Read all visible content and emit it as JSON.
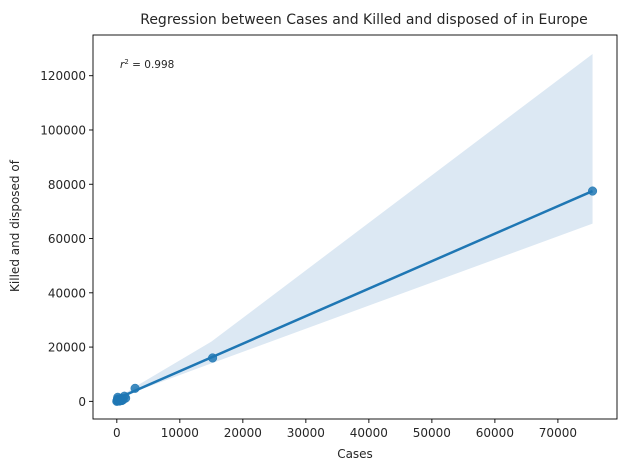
{
  "chart_data": {
    "type": "scatter",
    "title": "Regression between Cases and Killed and disposed of in Europe",
    "xlabel": "Cases",
    "ylabel": "Killed and disposed of",
    "xlim": [
      -3780,
      79380
    ],
    "ylim": [
      -6500,
      135000
    ],
    "xticks": [
      0,
      10000,
      20000,
      30000,
      40000,
      50000,
      60000,
      70000
    ],
    "yticks": [
      0,
      20000,
      40000,
      60000,
      80000,
      100000,
      120000
    ],
    "annotation": {
      "prefix": "r",
      "superscript": "2",
      "text": " = 0.998"
    },
    "points_color": "#1f77b4",
    "band_color": "#dce8f3",
    "points": [
      {
        "x": 0,
        "y": 0
      },
      {
        "x": 50,
        "y": 300
      },
      {
        "x": 100,
        "y": 800
      },
      {
        "x": 150,
        "y": 1500
      },
      {
        "x": 200,
        "y": 200
      },
      {
        "x": 300,
        "y": 600
      },
      {
        "x": 400,
        "y": 100
      },
      {
        "x": 500,
        "y": 900
      },
      {
        "x": 600,
        "y": 400
      },
      {
        "x": 700,
        "y": 1100
      },
      {
        "x": 800,
        "y": 300
      },
      {
        "x": 1000,
        "y": 600
      },
      {
        "x": 1200,
        "y": 1900
      },
      {
        "x": 1400,
        "y": 1200
      },
      {
        "x": 2900,
        "y": 4800
      },
      {
        "x": 15200,
        "y": 16000
      },
      {
        "x": 75500,
        "y": 77500
      }
    ],
    "regression": {
      "x": [
        0,
        75500
      ],
      "y": [
        1000,
        77500
      ]
    },
    "confidence_band": {
      "x": [
        0,
        1000,
        3000,
        15000,
        75500
      ],
      "upper": [
        2000,
        2500,
        5500,
        22000,
        128000
      ],
      "lower": [
        0,
        1200,
        3700,
        14000,
        65500
      ]
    }
  }
}
